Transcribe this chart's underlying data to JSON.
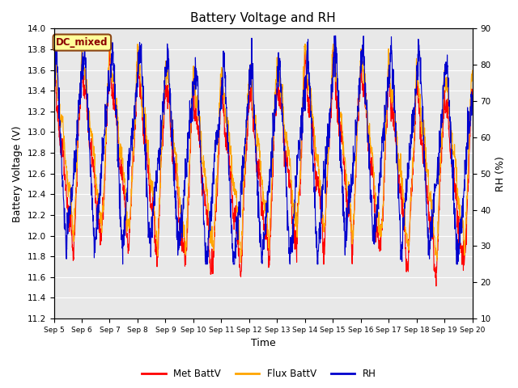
{
  "title": "Battery Voltage and RH",
  "xlabel": "Time",
  "ylabel_left": "Battery Voltage (V)",
  "ylabel_right": "RH (%)",
  "ylim_left": [
    11.2,
    14.0
  ],
  "ylim_right": [
    10,
    90
  ],
  "yticks_left": [
    11.2,
    11.4,
    11.6,
    11.8,
    12.0,
    12.2,
    12.4,
    12.6,
    12.8,
    13.0,
    13.2,
    13.4,
    13.6,
    13.8,
    14.0
  ],
  "yticks_right": [
    10,
    20,
    30,
    40,
    50,
    60,
    70,
    80,
    90
  ],
  "xticklabels": [
    "Sep 5",
    "Sep 6",
    "Sep 7",
    "Sep 8",
    "Sep 9",
    "Sep 10",
    "Sep 11",
    "Sep 12",
    "Sep 13",
    "Sep 14",
    "Sep 15",
    "Sep 16",
    "Sep 17",
    "Sep 18",
    "Sep 19",
    "Sep 20"
  ],
  "annotation_text": "DC_mixed",
  "annotation_color": "#8B0000",
  "annotation_bg": "#FFFF99",
  "annotation_border": "#8B4513",
  "color_met": "#FF0000",
  "color_flux": "#FFA500",
  "color_rh": "#0000CD",
  "legend_labels": [
    "Met BattV",
    "Flux BattV",
    "RH"
  ],
  "background_color": "#E8E8E8",
  "fig_bg": "#FFFFFF",
  "grid_color": "#FFFFFF",
  "num_points": 2000
}
